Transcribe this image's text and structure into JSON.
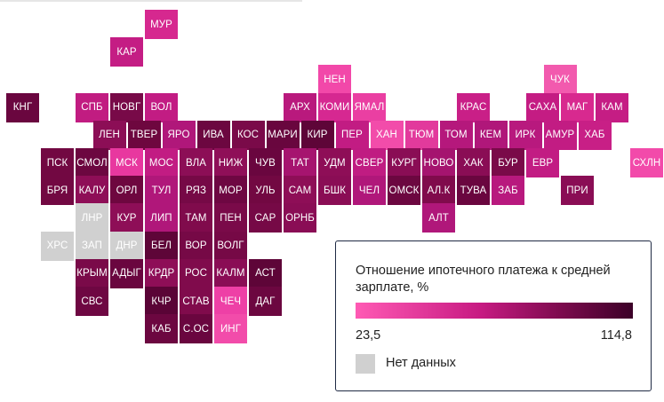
{
  "legend": {
    "title": "Отношение ипотечного платежа к средней зарплате, %",
    "min_label": "23,5",
    "max_label": "114,8",
    "nodata_label": "Нет данных",
    "colors": {
      "low": "#ff5ab4",
      "high": "#3c0128",
      "nodata": "#d0d0d0"
    }
  },
  "regions": [
    {
      "code": "МУР",
      "row": 0,
      "col": 8,
      "color": "#d6288f"
    },
    {
      "code": "КАР",
      "row": 1,
      "col": 6,
      "color": "#c41d84"
    },
    {
      "code": "НЕН",
      "row": 2,
      "col": 18,
      "color": "#f248a9"
    },
    {
      "code": "ЧУК",
      "row": 2,
      "col": 31,
      "color": "#f25aae"
    },
    {
      "code": "КНГ",
      "row": 3,
      "col": 0,
      "color": "#6a063f"
    },
    {
      "code": "СПБ",
      "row": 3,
      "col": 4,
      "color": "#c11c81"
    },
    {
      "code": "НОВГ",
      "row": 3,
      "col": 6,
      "color": "#780a48"
    },
    {
      "code": "ВОЛ",
      "row": 3,
      "col": 8,
      "color": "#c21c83"
    },
    {
      "code": "АРХ",
      "row": 3,
      "col": 16,
      "color": "#b9197d"
    },
    {
      "code": "КОМИ",
      "row": 3,
      "col": 18,
      "color": "#d62891"
    },
    {
      "code": "ЯМАЛ",
      "row": 3,
      "col": 20,
      "color": "#ea3fa2"
    },
    {
      "code": "КРАС",
      "row": 3,
      "col": 26,
      "color": "#c91f87"
    },
    {
      "code": "САХА",
      "row": 3,
      "col": 30,
      "color": "#c41c83"
    },
    {
      "code": "МАГ",
      "row": 3,
      "col": 32,
      "color": "#d8298f"
    },
    {
      "code": "КАМ",
      "row": 3,
      "col": 34,
      "color": "#c51d84"
    },
    {
      "code": "ЛЕН",
      "row": 4,
      "col": 5,
      "color": "#8c0e56"
    },
    {
      "code": "ТВЕР",
      "row": 4,
      "col": 7,
      "color": "#6e073f"
    },
    {
      "code": "ЯРО",
      "row": 4,
      "col": 9,
      "color": "#b0177a"
    },
    {
      "code": "ИВА",
      "row": 4,
      "col": 11,
      "color": "#6c0740"
    },
    {
      "code": "КОС",
      "row": 4,
      "col": 13,
      "color": "#7a0a49"
    },
    {
      "code": "МАРИ",
      "row": 4,
      "col": 15,
      "color": "#69063e"
    },
    {
      "code": "КИР",
      "row": 4,
      "col": 17,
      "color": "#5e0538"
    },
    {
      "code": "ПЕР",
      "row": 4,
      "col": 19,
      "color": "#c21c83"
    },
    {
      "code": "ХАН",
      "row": 4,
      "col": 21,
      "color": "#f24caa"
    },
    {
      "code": "ТЮМ",
      "row": 4,
      "col": 23,
      "color": "#e23a9c"
    },
    {
      "code": "ТОМ",
      "row": 4,
      "col": 25,
      "color": "#b5187c"
    },
    {
      "code": "КЕМ",
      "row": 4,
      "col": 27,
      "color": "#b0177a"
    },
    {
      "code": "ИРК",
      "row": 4,
      "col": 29,
      "color": "#b8197e"
    },
    {
      "code": "АМУР",
      "row": 4,
      "col": 31,
      "color": "#c21c83"
    },
    {
      "code": "ХАБ",
      "row": 4,
      "col": 33,
      "color": "#c81f86"
    },
    {
      "code": "ПСК",
      "row": 5,
      "col": 2,
      "color": "#720842"
    },
    {
      "code": "СМОЛ",
      "row": 5,
      "col": 4,
      "color": "#6c0740"
    },
    {
      "code": "МСК",
      "row": 5,
      "col": 6,
      "color": "#e8389f"
    },
    {
      "code": "МОС",
      "row": 5,
      "col": 8,
      "color": "#c21c83"
    },
    {
      "code": "ВЛА",
      "row": 5,
      "col": 10,
      "color": "#8c0e56"
    },
    {
      "code": "НИЖ",
      "row": 5,
      "col": 12,
      "color": "#8f0f58"
    },
    {
      "code": "ЧУВ",
      "row": 5,
      "col": 14,
      "color": "#6a063f"
    },
    {
      "code": "ТАТ",
      "row": 5,
      "col": 16,
      "color": "#a6146f"
    },
    {
      "code": "УДМ",
      "row": 5,
      "col": 18,
      "color": "#8e0e57"
    },
    {
      "code": "СВЕР",
      "row": 5,
      "col": 20,
      "color": "#c01c82"
    },
    {
      "code": "КУРГ",
      "row": 5,
      "col": 22,
      "color": "#8a0d55"
    },
    {
      "code": "НОВО",
      "row": 5,
      "col": 24,
      "color": "#a5146f"
    },
    {
      "code": "ХАК",
      "row": 5,
      "col": 26,
      "color": "#8a0d55"
    },
    {
      "code": "БУР",
      "row": 5,
      "col": 28,
      "color": "#7a0a49"
    },
    {
      "code": "ЕВР",
      "row": 5,
      "col": 30,
      "color": "#c21c83"
    },
    {
      "code": "СХЛН",
      "row": 5,
      "col": 36,
      "color": "#f24aaa"
    },
    {
      "code": "БРЯ",
      "row": 6,
      "col": 2,
      "color": "#720842"
    },
    {
      "code": "КАЛУ",
      "row": 6,
      "col": 4,
      "color": "#8e0e57"
    },
    {
      "code": "ОРЛ",
      "row": 6,
      "col": 6,
      "color": "#6e073f"
    },
    {
      "code": "ТУЛ",
      "row": 6,
      "col": 8,
      "color": "#b0177a"
    },
    {
      "code": "РЯЗ",
      "row": 6,
      "col": 10,
      "color": "#760946"
    },
    {
      "code": "МОР",
      "row": 6,
      "col": 12,
      "color": "#6e0742"
    },
    {
      "code": "УЛЬ",
      "row": 6,
      "col": 14,
      "color": "#720842"
    },
    {
      "code": "САМ",
      "row": 6,
      "col": 16,
      "color": "#8e0e57"
    },
    {
      "code": "БШК",
      "row": 6,
      "col": 18,
      "color": "#8a0d55"
    },
    {
      "code": "ЧЕЛ",
      "row": 6,
      "col": 20,
      "color": "#b0177a"
    },
    {
      "code": "ОМСК",
      "row": 6,
      "col": 22,
      "color": "#6c0740"
    },
    {
      "code": "АЛ.К",
      "row": 6,
      "col": 24,
      "color": "#800b4c"
    },
    {
      "code": "ТУВА",
      "row": 6,
      "col": 26,
      "color": "#6a063f"
    },
    {
      "code": "ЗАБ",
      "row": 6,
      "col": 28,
      "color": "#b8197e"
    },
    {
      "code": "ПРИ",
      "row": 6,
      "col": 32,
      "color": "#8a0d55"
    },
    {
      "code": "ЛНР",
      "row": 7,
      "col": 4,
      "color": "#d0d0d0"
    },
    {
      "code": "КУР",
      "row": 7,
      "col": 6,
      "color": "#8e0e57"
    },
    {
      "code": "ЛИП",
      "row": 7,
      "col": 8,
      "color": "#b0177a"
    },
    {
      "code": "ТАМ",
      "row": 7,
      "col": 10,
      "color": "#800b4c"
    },
    {
      "code": "ПЕН",
      "row": 7,
      "col": 12,
      "color": "#7a0a49"
    },
    {
      "code": "САР",
      "row": 7,
      "col": 14,
      "color": "#760946"
    },
    {
      "code": "ОРНБ",
      "row": 7,
      "col": 16,
      "color": "#8a0d55"
    },
    {
      "code": "АЛТ",
      "row": 7,
      "col": 24,
      "color": "#b0177a"
    },
    {
      "code": "ХРС",
      "row": 8,
      "col": 2,
      "color": "#d0d0d0"
    },
    {
      "code": "ЗАП",
      "row": 8,
      "col": 4,
      "color": "#d0d0d0"
    },
    {
      "code": "ДНР",
      "row": 8,
      "col": 6,
      "color": "#d0d0d0"
    },
    {
      "code": "БЕЛ",
      "row": 8,
      "col": 8,
      "color": "#5e0538"
    },
    {
      "code": "ВОР",
      "row": 8,
      "col": 10,
      "color": "#760946"
    },
    {
      "code": "ВОЛГ",
      "row": 8,
      "col": 12,
      "color": "#760946"
    },
    {
      "code": "КРЫМ",
      "row": 9,
      "col": 4,
      "color": "#7a0a49"
    },
    {
      "code": "АДЫГ",
      "row": 9,
      "col": 6,
      "color": "#6a063f"
    },
    {
      "code": "КРДР",
      "row": 9,
      "col": 8,
      "color": "#8e0e57"
    },
    {
      "code": "РОС",
      "row": 9,
      "col": 10,
      "color": "#800b4c"
    },
    {
      "code": "КАЛМ",
      "row": 9,
      "col": 12,
      "color": "#8a0d55"
    },
    {
      "code": "АСТ",
      "row": 9,
      "col": 14,
      "color": "#5e0538"
    },
    {
      "code": "СВС",
      "row": 10,
      "col": 4,
      "color": "#6e0742"
    },
    {
      "code": "КЧР",
      "row": 10,
      "col": 8,
      "color": "#5a0436"
    },
    {
      "code": "СТАВ",
      "row": 10,
      "col": 10,
      "color": "#800b4c"
    },
    {
      "code": "ЧЕЧ",
      "row": 10,
      "col": 12,
      "color": "#ee40a6"
    },
    {
      "code": "ДАГ",
      "row": 10,
      "col": 14,
      "color": "#6c0740"
    },
    {
      "code": "КАБ",
      "row": 11,
      "col": 8,
      "color": "#6c0740"
    },
    {
      "code": "С.ОС",
      "row": 11,
      "col": 10,
      "color": "#6a063f"
    },
    {
      "code": "ИНГ",
      "row": 11,
      "col": 12,
      "color": "#f24caa"
    }
  ]
}
